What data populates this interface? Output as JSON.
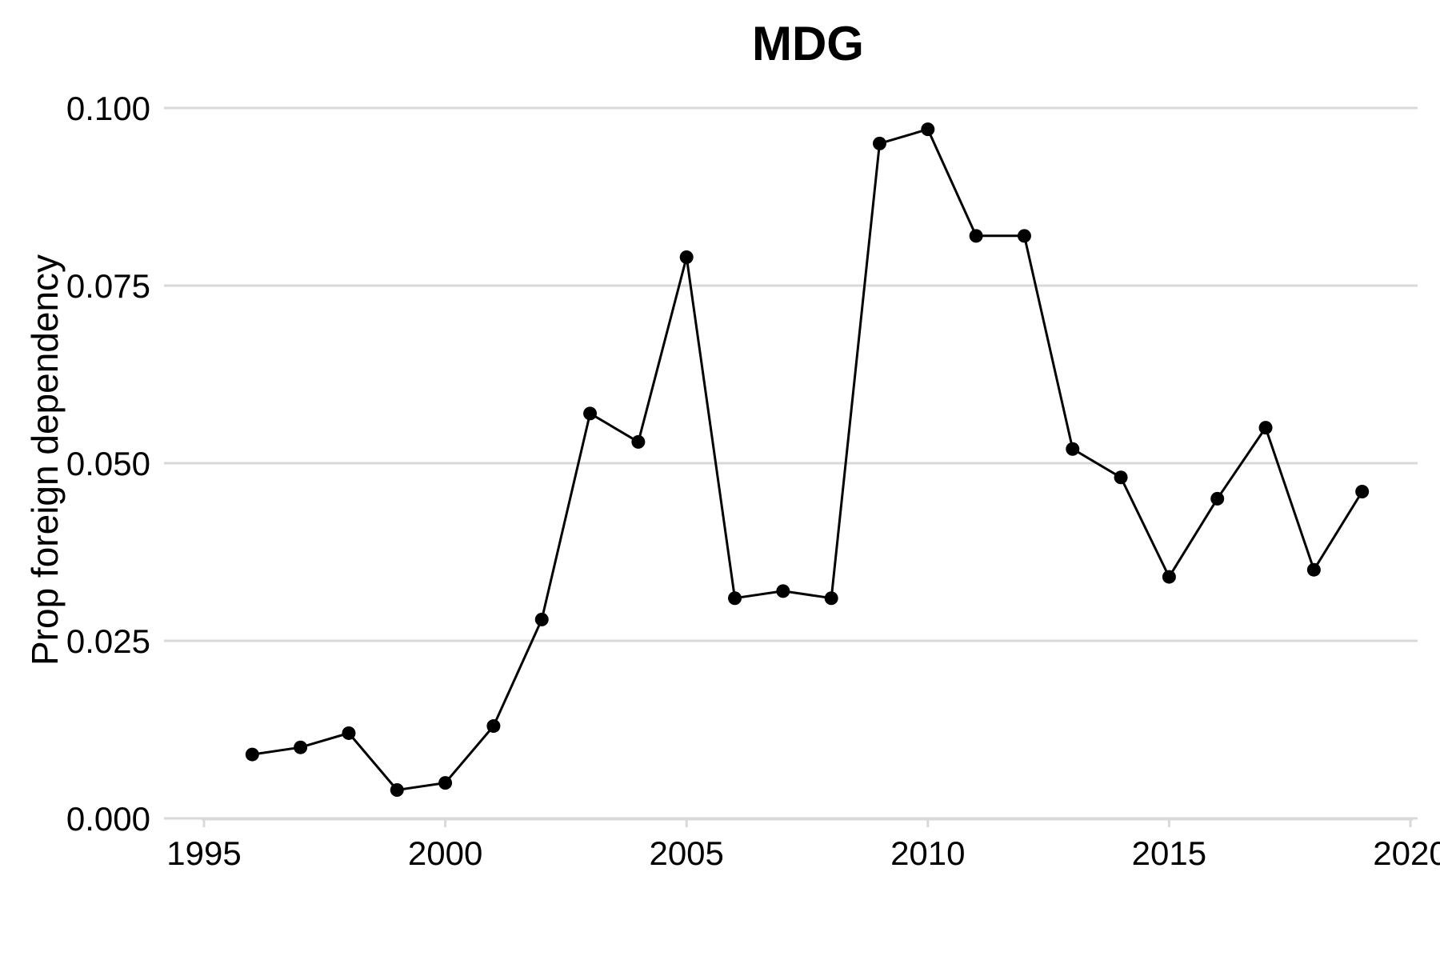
{
  "chart_data": {
    "type": "line",
    "title": "MDG",
    "xlabel": "",
    "ylabel": "Prop foreign dependency",
    "xlim": [
      1995,
      2020
    ],
    "ylim": [
      0,
      0.1
    ],
    "x_ticks": [
      "1995",
      "2000",
      "2005",
      "2010",
      "2015",
      "2020"
    ],
    "y_ticks": [
      "0.000",
      "0.025",
      "0.050",
      "0.075",
      "0.100"
    ],
    "grid": "horizontal",
    "series": [
      {
        "x": [
          1996,
          1997,
          1998,
          1999,
          2000,
          2001,
          2002,
          2003,
          2004,
          2005,
          2006,
          2007,
          2008,
          2009,
          2010,
          2011,
          2012,
          2013,
          2014,
          2015,
          2016,
          2017,
          2018,
          2019
        ],
        "values": [
          0.009,
          0.01,
          0.012,
          0.004,
          0.005,
          0.013,
          0.028,
          0.057,
          0.053,
          0.079,
          0.031,
          0.032,
          0.031,
          0.095,
          0.097,
          0.082,
          0.082,
          0.052,
          0.048,
          0.034,
          0.045,
          0.055,
          0.035,
          0.046
        ]
      }
    ],
    "colors": {
      "line": "#000000",
      "grid": "#d9d9d9"
    }
  }
}
